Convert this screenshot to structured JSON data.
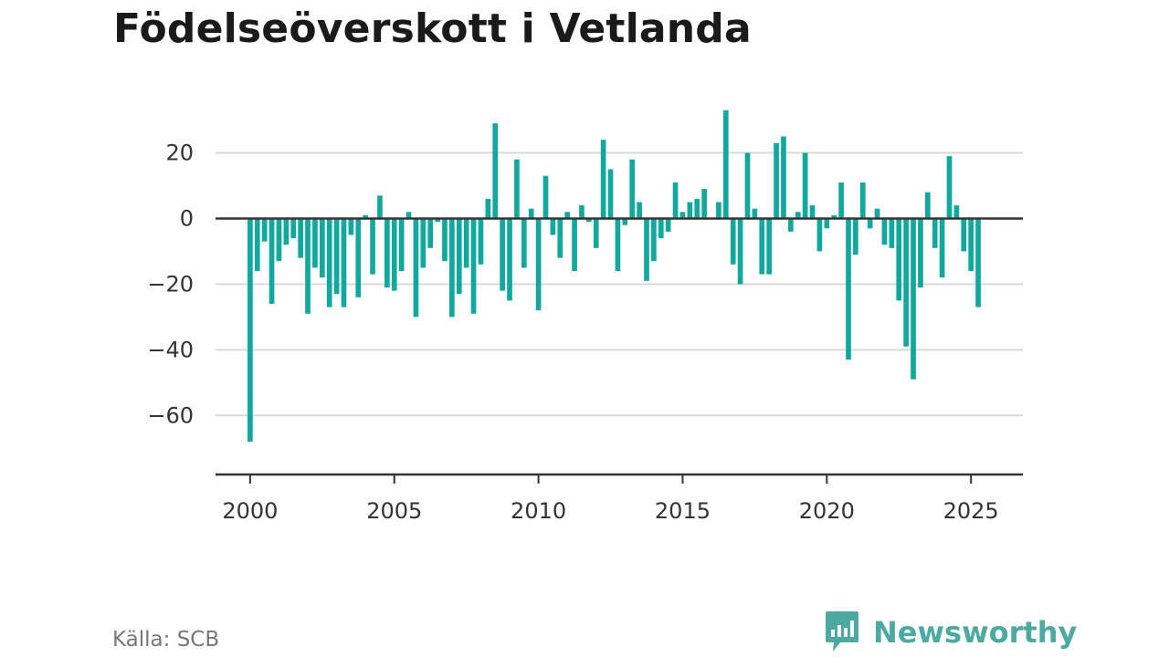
{
  "title": "Födelseöverskott i Vetlanda",
  "source": "Källa: SCB",
  "brand": {
    "name": "Newsworthy",
    "icon": "newsworthy-logo-icon",
    "color": "#4caaa0"
  },
  "colors": {
    "bar": "#13a89e",
    "grid": "#d9d9d9",
    "zero_line": "#333333",
    "axis": "#333333"
  },
  "chart_data": {
    "type": "bar",
    "title": "Födelseöverskott i Vetlanda",
    "xlabel": "",
    "ylabel": "",
    "frequency": "quarterly",
    "start": "2000-Q1",
    "xlim": [
      1998.8,
      2026.8
    ],
    "ylim": [
      -78,
      36
    ],
    "grid": true,
    "legend": "none",
    "x_ticks": [
      2000,
      2005,
      2010,
      2015,
      2020,
      2025
    ],
    "y_ticks": [
      20,
      0,
      -20,
      -40,
      -60
    ],
    "x_tick_labels": [
      "2000",
      "2005",
      "2010",
      "2015",
      "2020",
      "2025"
    ],
    "y_tick_labels": [
      "20",
      "0",
      "−20",
      "−40",
      "−60"
    ],
    "values": [
      -68,
      -16,
      -7,
      -26,
      -13,
      -8,
      -6,
      -12,
      -29,
      -15,
      -18,
      -27,
      -23,
      -27,
      -5,
      -24,
      1,
      -17,
      7,
      -21,
      -22,
      -16,
      2,
      -30,
      -15,
      -9,
      -1,
      -13,
      -30,
      -23,
      -15,
      -29,
      -14,
      6,
      29,
      -22,
      -25,
      18,
      -15,
      3,
      -28,
      13,
      -5,
      -12,
      2,
      -16,
      4,
      -1,
      -9,
      24,
      15,
      -16,
      -2,
      18,
      5,
      -19,
      -13,
      -6,
      -4,
      11,
      2,
      5,
      6,
      9,
      0,
      5,
      33,
      -14,
      -20,
      20,
      3,
      -17,
      -17,
      23,
      25,
      -4,
      2,
      20,
      4,
      -10,
      -3,
      1,
      11,
      -43,
      -11,
      11,
      -3,
      3,
      -8,
      -9,
      -25,
      -39,
      -49,
      -21,
      8,
      -9,
      -18,
      19,
      4,
      -10,
      -16,
      -27
    ]
  }
}
